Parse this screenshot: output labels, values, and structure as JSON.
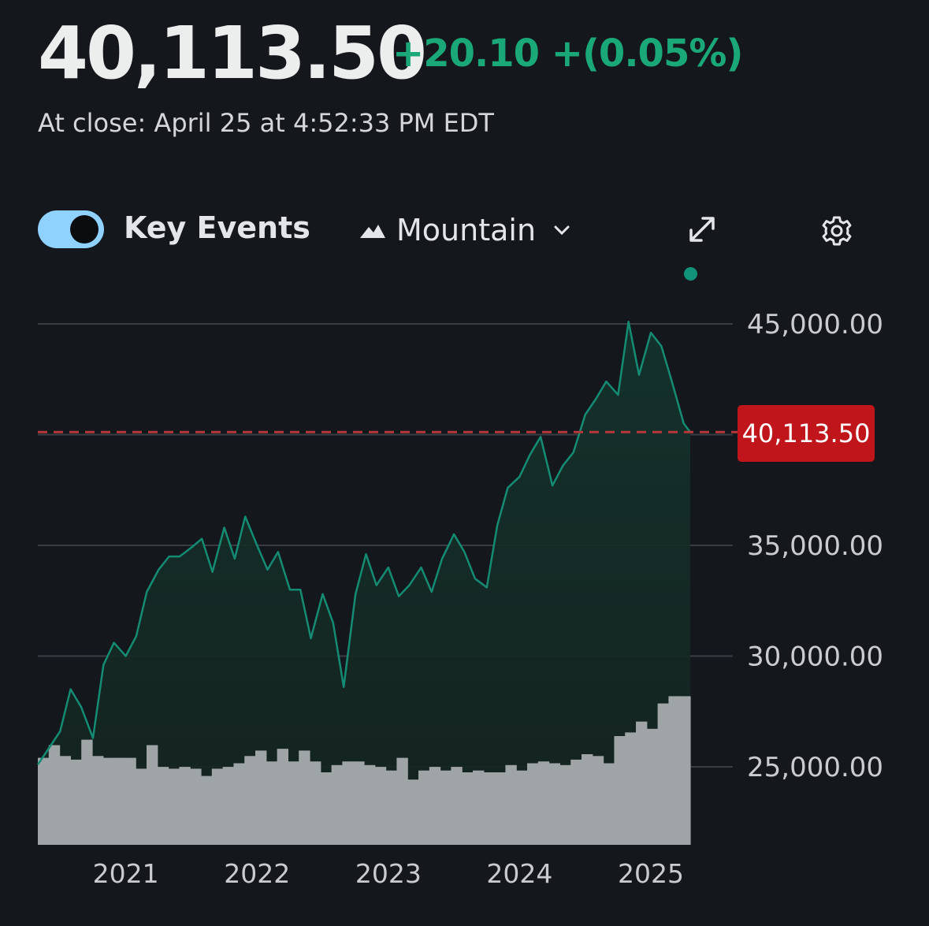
{
  "quote": {
    "price": "40,113.50",
    "change": "+20.10 +(0.05%)",
    "close_time": "At close: April 25 at 4:52:33 PM EDT"
  },
  "toolbar": {
    "key_events_label": "Key Events",
    "key_events_on": true,
    "chart_type_label": "Mountain",
    "chart_type_icon": "mountain-icon",
    "expand_icon": "expand-icon",
    "settings_icon": "gear-icon"
  },
  "colors": {
    "positive": "#1ba878",
    "line": "#148c73",
    "current_price_tag": "#c0151a",
    "volume": "#9fa4a7",
    "toggle": "#8fd1ff"
  },
  "chart_data": {
    "type": "area",
    "x_labels": [
      "2021",
      "2022",
      "2023",
      "2024",
      "2025"
    ],
    "y_tick_labels": [
      "45,000.00",
      "35,000.00",
      "30,000.00",
      "25,000.00"
    ],
    "current_price_label": "40,113.50",
    "current_price": 40113.5,
    "ylim": [
      20000,
      46000
    ],
    "x_range": [
      2020.35,
      2025.32
    ],
    "grid": true,
    "price_series": {
      "x": [
        2020.35,
        2020.43,
        2020.52,
        2020.6,
        2020.68,
        2020.77,
        2020.85,
        2020.93,
        2021.02,
        2021.1,
        2021.18,
        2021.27,
        2021.35,
        2021.43,
        2021.52,
        2021.6,
        2021.68,
        2021.77,
        2021.85,
        2021.93,
        2022.02,
        2022.1,
        2022.18,
        2022.27,
        2022.35,
        2022.43,
        2022.52,
        2022.6,
        2022.68,
        2022.77,
        2022.85,
        2022.93,
        2023.02,
        2023.1,
        2023.18,
        2023.27,
        2023.35,
        2023.43,
        2023.52,
        2023.6,
        2023.68,
        2023.77,
        2023.85,
        2023.93,
        2024.02,
        2024.1,
        2024.18,
        2024.27,
        2024.35,
        2024.43,
        2024.52,
        2024.6,
        2024.68,
        2024.77,
        2024.85,
        2024.93,
        2025.02,
        2025.1,
        2025.18,
        2025.27,
        2025.32
      ],
      "y": [
        25100,
        25800,
        26600,
        28500,
        27700,
        26300,
        29600,
        30600,
        30000,
        30900,
        32900,
        33900,
        34500,
        34500,
        34900,
        35300,
        33800,
        35800,
        34400,
        36300,
        35000,
        33900,
        34700,
        33000,
        33000,
        30800,
        32800,
        31500,
        28600,
        32800,
        34600,
        33200,
        34000,
        32700,
        33200,
        34000,
        32900,
        34400,
        35500,
        34700,
        33500,
        33100,
        35900,
        37600,
        38100,
        39100,
        39900,
        37700,
        38600,
        39200,
        40900,
        41600,
        42400,
        41800,
        45100,
        42700,
        44600,
        44000,
        42400,
        40500,
        40113.5
      ]
    },
    "volume_series": {
      "x": [
        2020.38,
        2020.46,
        2020.55,
        2020.63,
        2020.71,
        2020.8,
        2020.88,
        2020.96,
        2021.05,
        2021.13,
        2021.21,
        2021.3,
        2021.38,
        2021.46,
        2021.55,
        2021.63,
        2021.71,
        2021.8,
        2021.88,
        2021.96,
        2022.05,
        2022.13,
        2022.21,
        2022.3,
        2022.38,
        2022.46,
        2022.55,
        2022.63,
        2022.71,
        2022.8,
        2022.88,
        2022.96,
        2023.05,
        2023.13,
        2023.21,
        2023.3,
        2023.38,
        2023.46,
        2023.55,
        2023.63,
        2023.71,
        2023.8,
        2023.88,
        2023.96,
        2024.05,
        2024.13,
        2024.21,
        2024.3,
        2024.38,
        2024.46,
        2024.55,
        2024.63,
        2024.71,
        2024.8,
        2024.88,
        2024.96,
        2025.05,
        2025.13,
        2025.21,
        2025.29
      ],
      "y": [
        0.48,
        0.55,
        0.49,
        0.47,
        0.58,
        0.49,
        0.48,
        0.48,
        0.48,
        0.42,
        0.55,
        0.43,
        0.42,
        0.43,
        0.42,
        0.38,
        0.42,
        0.43,
        0.45,
        0.49,
        0.52,
        0.46,
        0.53,
        0.46,
        0.52,
        0.46,
        0.4,
        0.44,
        0.46,
        0.46,
        0.44,
        0.43,
        0.41,
        0.48,
        0.36,
        0.41,
        0.43,
        0.41,
        0.43,
        0.4,
        0.41,
        0.4,
        0.4,
        0.44,
        0.41,
        0.45,
        0.46,
        0.45,
        0.44,
        0.47,
        0.5,
        0.49,
        0.45,
        0.6,
        0.62,
        0.68,
        0.64,
        0.78,
        0.82,
        0.82
      ]
    }
  }
}
